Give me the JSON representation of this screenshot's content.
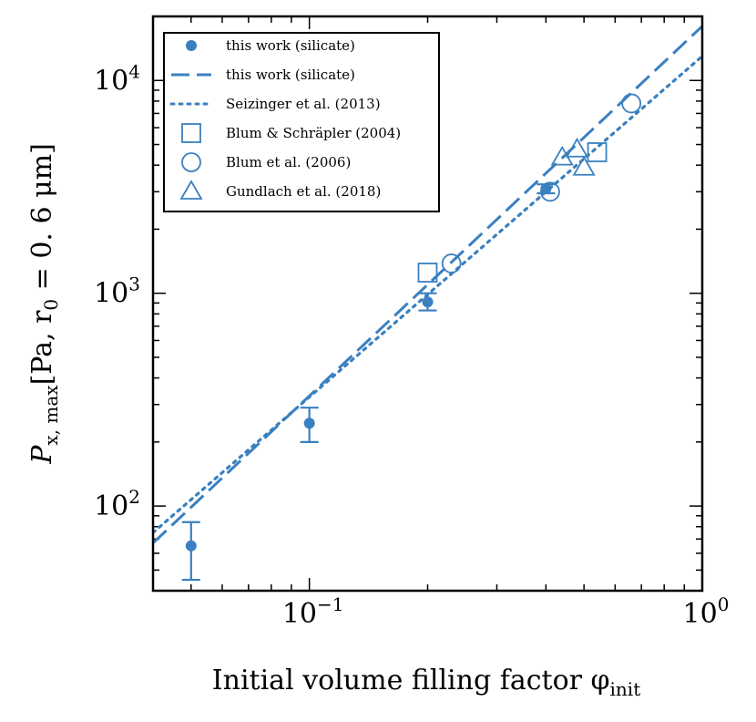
{
  "chart_data": {
    "type": "scatter",
    "xscale": "log",
    "yscale": "log",
    "xlim": [
      0.04,
      1.0
    ],
    "ylim": [
      40,
      20000
    ],
    "xlabel": "Initial volume filling factor φ",
    "xlabel_sub": "init",
    "ylabel": "P",
    "ylabel_sub": "x, max",
    "ylabel_bracket": "[Pa, r",
    "ylabel_sub2": "0",
    "ylabel_tail": " = 0. 6 μm]",
    "x_ticks": [
      {
        "value": 0.1,
        "base": "10",
        "exp": "−1"
      },
      {
        "value": 1.0,
        "base": "10",
        "exp": "0"
      }
    ],
    "y_ticks": [
      {
        "value": 100,
        "base": "10",
        "exp": "2"
      },
      {
        "value": 1000,
        "base": "10",
        "exp": "3"
      },
      {
        "value": 10000,
        "base": "10",
        "exp": "4"
      }
    ],
    "color": "#3a80c0",
    "series": [
      {
        "name": "this work (silicate)",
        "marker": "filled-circle",
        "points": [
          {
            "x": 0.05,
            "y": 65,
            "ylo": 45,
            "yhi": 84
          },
          {
            "x": 0.1,
            "y": 245,
            "ylo": 200,
            "yhi": 290
          },
          {
            "x": 0.2,
            "y": 910,
            "ylo": 830,
            "yhi": 1000
          },
          {
            "x": 0.4,
            "y": 3100,
            "ylo": 2950,
            "yhi": 3250
          }
        ]
      },
      {
        "name": "this work (silicate)",
        "style": "dashed-line",
        "x": [
          0.04,
          1.0
        ],
        "y": [
          67,
          18000
        ]
      },
      {
        "name": "Seizinger et al. (2013)",
        "style": "dotted-line",
        "x": [
          0.04,
          1.0
        ],
        "y": [
          75,
          13000
        ]
      },
      {
        "name": "Blum & Schräpler (2004)",
        "marker": "open-square",
        "points": [
          {
            "x": 0.2,
            "y": 1250
          },
          {
            "x": 0.54,
            "y": 4600
          }
        ]
      },
      {
        "name": "Blum et al. (2006)",
        "marker": "open-circle",
        "points": [
          {
            "x": 0.23,
            "y": 1380
          },
          {
            "x": 0.41,
            "y": 3000
          },
          {
            "x": 0.66,
            "y": 7800
          }
        ]
      },
      {
        "name": "Gundlach et al. (2018)",
        "marker": "open-triangle",
        "points": [
          {
            "x": 0.44,
            "y": 4350
          },
          {
            "x": 0.48,
            "y": 4750
          },
          {
            "x": 0.5,
            "y": 3900
          }
        ]
      }
    ],
    "legend": {
      "position": "top-left",
      "entries": [
        {
          "label": "this work (silicate)",
          "symbol": "filled-circle"
        },
        {
          "label": "this work (silicate)",
          "symbol": "dashed-line"
        },
        {
          "label": "Seizinger et al. (2013)",
          "symbol": "dotted-line"
        },
        {
          "label": "Blum & Schräpler (2004)",
          "symbol": "open-square"
        },
        {
          "label": "Blum et al. (2006)",
          "symbol": "open-circle"
        },
        {
          "label": "Gundlach et al. (2018)",
          "symbol": "open-triangle"
        }
      ]
    }
  }
}
